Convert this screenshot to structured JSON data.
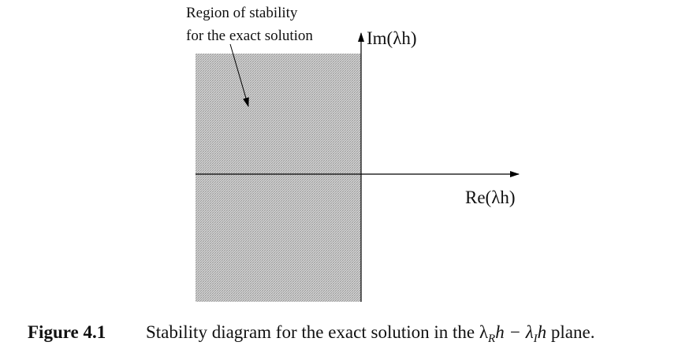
{
  "annotation": {
    "lines": [
      "Region of stability",
      "for the exact solution"
    ]
  },
  "axes": {
    "imaginary": "Im(λh)",
    "real": "Re(λh)"
  },
  "caption": {
    "label": "Figure 4.1",
    "text": "Stability diagram for the exact solution in the",
    "math": [
      "λ",
      "R",
      "h − λ",
      "I",
      "h"
    ],
    "end": "plane."
  }
}
